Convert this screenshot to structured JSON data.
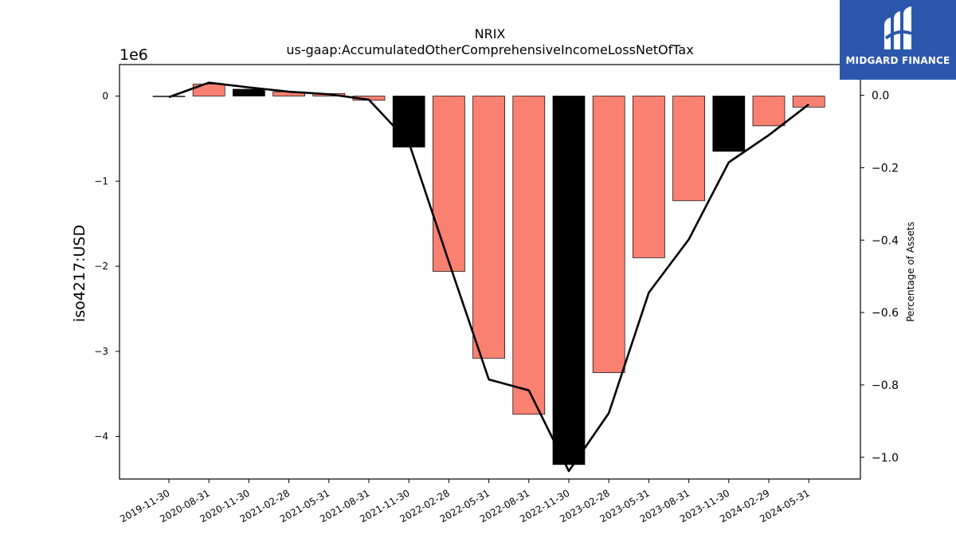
{
  "chart_data": {
    "type": "bar",
    "title": "NRIX",
    "subtitle": "us-gaap:AccumulatedOtherComprehensiveIncomeLossNetOfTax",
    "ylabel": "iso4217:USD",
    "y_multiplier": "1e6",
    "y2label": "Percentage of Assets",
    "categories": [
      "2019-11-30",
      "2020-08-31",
      "2020-11-30",
      "2021-02-28",
      "2021-05-31",
      "2021-08-31",
      "2021-11-30",
      "2022-02-28",
      "2022-05-31",
      "2022-08-31",
      "2022-11-30",
      "2023-02-28",
      "2023-05-31",
      "2023-08-31",
      "2023-11-30",
      "2024-02-29",
      "2024-05-31"
    ],
    "values": [
      -5000,
      140000,
      80000,
      50000,
      30000,
      -50000,
      -600000,
      -2060000,
      -3080000,
      -3740000,
      -4330000,
      -3250000,
      -1900000,
      -1230000,
      -650000,
      -350000,
      -130000
    ],
    "highlight": [
      false,
      false,
      true,
      false,
      false,
      false,
      true,
      false,
      false,
      false,
      true,
      false,
      false,
      false,
      true,
      false,
      false
    ],
    "series": [
      {
        "axis": "right",
        "type": "line",
        "values": [
          -0.005,
          0.035,
          0.022,
          0.01,
          0.003,
          -0.012,
          -0.13,
          -0.46,
          -0.785,
          -0.815,
          -1.038,
          -0.878,
          -0.545,
          -0.398,
          -0.185,
          -0.11,
          -0.025
        ]
      }
    ],
    "ylim": [
      -4500000,
      370000
    ],
    "y2lim": [
      -1.06,
      0.085
    ],
    "yticks": [
      0,
      -1000000,
      -2000000,
      -3000000,
      -4000000
    ],
    "ytick_labels": [
      "0",
      "−1",
      "−2",
      "−3",
      "−4"
    ],
    "y2ticks": [
      0.0,
      -0.2,
      -0.4,
      -0.6,
      -0.8,
      -1.0
    ],
    "y2tick_labels": [
      "0.0",
      "−0.2",
      "−0.4",
      "−0.6",
      "−0.8",
      "−1.0"
    ],
    "colors": {
      "bar": "#fa8072",
      "highlight": "#000000",
      "line": "#000000"
    }
  },
  "logo": {
    "text": "MIDGARD FINANCE"
  }
}
